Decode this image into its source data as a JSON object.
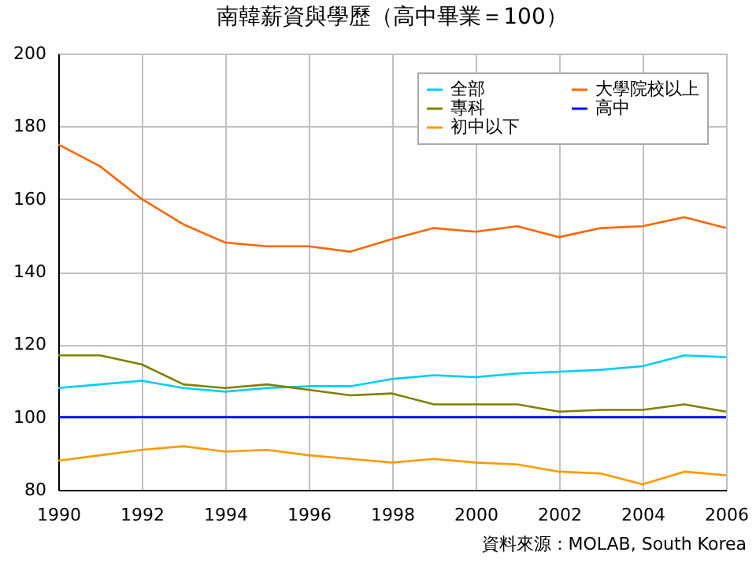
{
  "chart_data": {
    "type": "line",
    "title": "南韓薪資與學歷（高中畢業＝100）",
    "annotations": [
      "資料來源：MOLAB, South Korea"
    ],
    "x": [
      1990,
      1991,
      1992,
      1993,
      1994,
      1995,
      1996,
      1997,
      1998,
      1999,
      2000,
      2001,
      2002,
      2003,
      2004,
      2005,
      2006
    ],
    "series": [
      {
        "name": "全部",
        "color": "#00ccff",
        "values": [
          108,
          109,
          110,
          108,
          107,
          108,
          108.5,
          108.5,
          110.5,
          111.5,
          111,
          112,
          112.5,
          113,
          114,
          117,
          116.5
        ]
      },
      {
        "name": "專科",
        "color": "#808000",
        "values": [
          117,
          117,
          114.5,
          109,
          108,
          109,
          107.5,
          106,
          106.5,
          103.5,
          103.5,
          103.5,
          101.5,
          102,
          102,
          103.5,
          101.5
        ]
      },
      {
        "name": "初中以下",
        "color": "#ff9900",
        "values": [
          88,
          89.5,
          91,
          92,
          90.5,
          91,
          89.5,
          88.5,
          87.5,
          88.5,
          87.5,
          87,
          85,
          84.5,
          81.5,
          85,
          84
        ]
      },
      {
        "name": "大學院校以上",
        "color": "#ff6600",
        "values": [
          175,
          169,
          160,
          153,
          148,
          147,
          147,
          145.5,
          149,
          152,
          151,
          152.5,
          149.5,
          152,
          152.5,
          155,
          152
        ]
      },
      {
        "name": "高中",
        "color": "#0000ff",
        "values": [
          100,
          100,
          100,
          100,
          100,
          100,
          100,
          100,
          100,
          100,
          100,
          100,
          100,
          100,
          100,
          100,
          100
        ]
      }
    ],
    "xlim": [
      1990,
      2006
    ],
    "xticks": [
      1990,
      1992,
      1994,
      1996,
      1998,
      2000,
      2002,
      2004,
      2006
    ],
    "ylim": [
      80,
      200
    ],
    "yticks": [
      80,
      100,
      120,
      140,
      160,
      180,
      200
    ],
    "grid": true,
    "legend": "top right",
    "marker": "none",
    "line_style": "solid"
  }
}
